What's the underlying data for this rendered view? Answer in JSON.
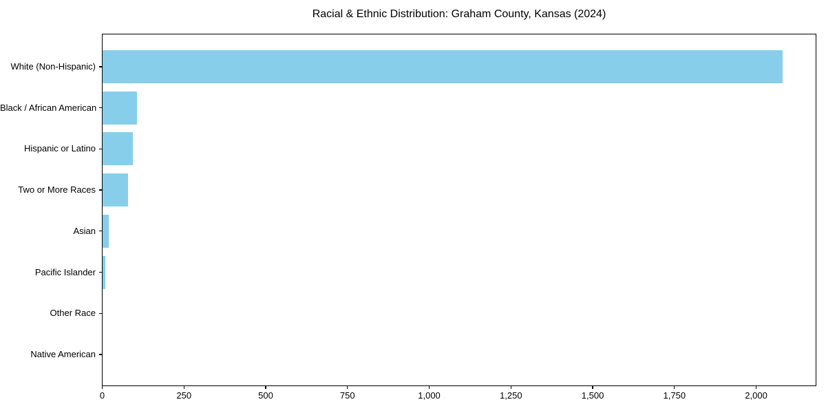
{
  "figure": {
    "background_color": "#FFFFFF"
  },
  "chart_data": {
    "type": "bar",
    "orientation": "horizontal",
    "title": "Racial & Ethnic Distribution: Graham County, Kansas (2024)",
    "xlabel": "",
    "ylabel": "",
    "categories": [
      "White (Non-Hispanic)",
      "Black / African American",
      "Hispanic or Latino",
      "Two or More Races",
      "Asian",
      "Pacific Islander",
      "Other Race",
      "Native American"
    ],
    "values": [
      2080,
      105,
      93,
      77,
      18,
      8,
      0,
      0
    ],
    "xlim": [
      0,
      2184
    ],
    "x_ticks": [
      0,
      250,
      500,
      750,
      1000,
      1250,
      1500,
      1750,
      2000
    ],
    "x_tick_labels": [
      "0",
      "250",
      "500",
      "750",
      "1,000",
      "1,250",
      "1,500",
      "1,750",
      "2,000"
    ],
    "bar_color": "#87CEEB",
    "axis_color": "#000000",
    "text_color": "#000000",
    "grid": false,
    "legend": null
  }
}
